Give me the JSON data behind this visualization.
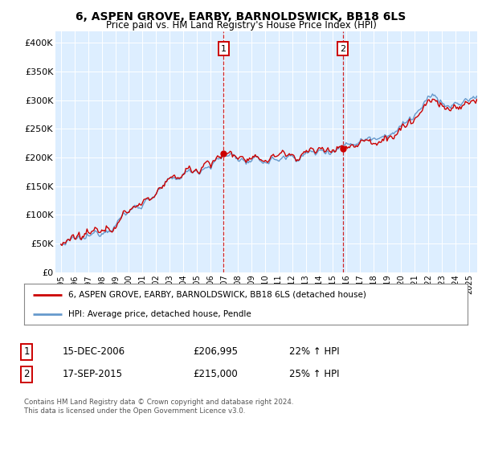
{
  "title": "6, ASPEN GROVE, EARBY, BARNOLDSWICK, BB18 6LS",
  "subtitle": "Price paid vs. HM Land Registry's House Price Index (HPI)",
  "ylabel_ticks": [
    "£0",
    "£50K",
    "£100K",
    "£150K",
    "£200K",
    "£250K",
    "£300K",
    "£350K",
    "£400K"
  ],
  "ylim": [
    0,
    420000
  ],
  "yticks": [
    0,
    50000,
    100000,
    150000,
    200000,
    250000,
    300000,
    350000,
    400000
  ],
  "legend_line1": "6, ASPEN GROVE, EARBY, BARNOLDSWICK, BB18 6LS (detached house)",
  "legend_line2": "HPI: Average price, detached house, Pendle",
  "sale1_date": "15-DEC-2006",
  "sale1_price": "£206,995",
  "sale1_hpi": "22% ↑ HPI",
  "sale2_date": "17-SEP-2015",
  "sale2_price": "£215,000",
  "sale2_hpi": "25% ↑ HPI",
  "footer": "Contains HM Land Registry data © Crown copyright and database right 2024.\nThis data is licensed under the Open Government Licence v3.0.",
  "sale1_x": 2006.96,
  "sale2_x": 2015.71,
  "sale1_y": 206995,
  "sale2_y": 215000,
  "line_color_red": "#cc0000",
  "line_color_blue": "#6699cc",
  "bg_color": "#ddeeff",
  "annotation_box_color": "#cc0000",
  "vline_color": "#cc0000",
  "xlim_left": 1994.6,
  "xlim_right": 2025.6,
  "xtick_years": [
    1995,
    1996,
    1997,
    1998,
    1999,
    2000,
    2001,
    2002,
    2003,
    2004,
    2005,
    2006,
    2007,
    2008,
    2009,
    2010,
    2011,
    2012,
    2013,
    2014,
    2015,
    2016,
    2017,
    2018,
    2019,
    2020,
    2021,
    2022,
    2023,
    2024,
    2025
  ]
}
